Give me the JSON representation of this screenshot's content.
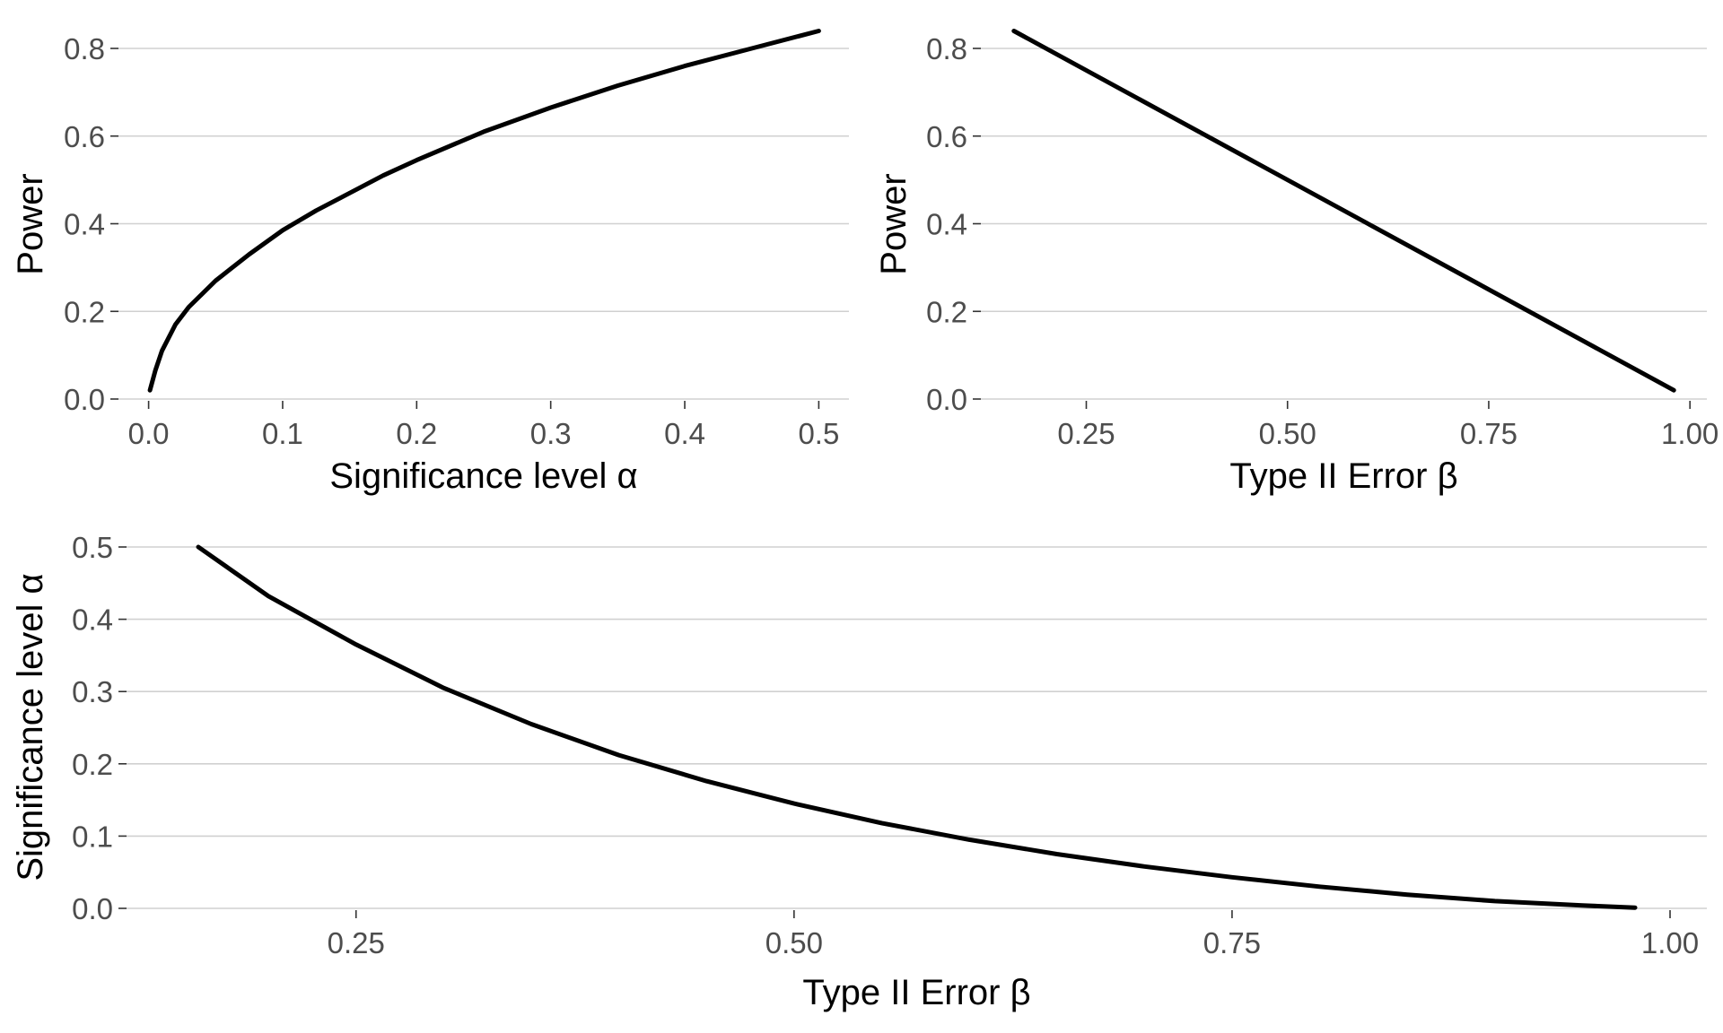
{
  "chart_data": [
    {
      "type": "line",
      "xlabel": "Significance level α",
      "ylabel": "Power",
      "xlim": [
        -0.0225,
        0.5225
      ],
      "ylim": [
        0.0,
        0.8
      ],
      "x_ticks": [
        {
          "value": 0.0,
          "label": "0.0"
        },
        {
          "value": 0.1,
          "label": "0.1"
        },
        {
          "value": 0.2,
          "label": "0.2"
        },
        {
          "value": 0.3,
          "label": "0.3"
        },
        {
          "value": 0.4,
          "label": "0.4"
        },
        {
          "value": 0.5,
          "label": "0.5"
        }
      ],
      "y_ticks": [
        {
          "value": 0.0,
          "label": "0.0"
        },
        {
          "value": 0.2,
          "label": "0.2"
        },
        {
          "value": 0.4,
          "label": "0.4"
        },
        {
          "value": 0.6,
          "label": "0.6"
        },
        {
          "value": 0.8,
          "label": "0.8"
        }
      ],
      "grid": "horizontal",
      "series": [
        {
          "color": "#000000",
          "x": [
            0.001,
            0.005,
            0.01,
            0.02,
            0.03,
            0.05,
            0.075,
            0.1,
            0.125,
            0.15,
            0.175,
            0.2,
            0.25,
            0.3,
            0.35,
            0.4,
            0.45,
            0.5
          ],
          "y": [
            0.02,
            0.065,
            0.11,
            0.17,
            0.21,
            0.27,
            0.33,
            0.385,
            0.43,
            0.47,
            0.51,
            0.545,
            0.61,
            0.665,
            0.715,
            0.76,
            0.8,
            0.84
          ]
        }
      ]
    },
    {
      "type": "line",
      "xlabel": "Type II Error β",
      "ylabel": "Power",
      "xlim": [
        0.119,
        1.021
      ],
      "ylim": [
        0.0,
        0.8
      ],
      "x_ticks": [
        {
          "value": 0.25,
          "label": "0.25"
        },
        {
          "value": 0.5,
          "label": "0.50"
        },
        {
          "value": 0.75,
          "label": "0.75"
        },
        {
          "value": 1.0,
          "label": "1.00"
        }
      ],
      "y_ticks": [
        {
          "value": 0.0,
          "label": "0.0"
        },
        {
          "value": 0.2,
          "label": "0.2"
        },
        {
          "value": 0.4,
          "label": "0.4"
        },
        {
          "value": 0.6,
          "label": "0.6"
        },
        {
          "value": 0.8,
          "label": "0.8"
        }
      ],
      "grid": "horizontal",
      "series": [
        {
          "color": "#000000",
          "x": [
            0.16,
            0.98
          ],
          "y": [
            0.84,
            0.02
          ]
        }
      ]
    },
    {
      "type": "line",
      "xlabel": "Type II Error β",
      "ylabel": "Significance level α",
      "xlim": [
        0.119,
        1.021
      ],
      "ylim": [
        0.0,
        0.5
      ],
      "x_ticks": [
        {
          "value": 0.25,
          "label": "0.25"
        },
        {
          "value": 0.5,
          "label": "0.50"
        },
        {
          "value": 0.75,
          "label": "0.75"
        },
        {
          "value": 1.0,
          "label": "1.00"
        }
      ],
      "y_ticks": [
        {
          "value": 0.0,
          "label": "0.0"
        },
        {
          "value": 0.1,
          "label": "0.1"
        },
        {
          "value": 0.2,
          "label": "0.2"
        },
        {
          "value": 0.3,
          "label": "0.3"
        },
        {
          "value": 0.4,
          "label": "0.4"
        },
        {
          "value": 0.5,
          "label": "0.5"
        }
      ],
      "grid": "horizontal",
      "series": [
        {
          "color": "#000000",
          "x": [
            0.16,
            0.2,
            0.25,
            0.3,
            0.35,
            0.4,
            0.45,
            0.5,
            0.55,
            0.6,
            0.65,
            0.7,
            0.75,
            0.8,
            0.85,
            0.9,
            0.95,
            0.98
          ],
          "y": [
            0.5,
            0.432,
            0.365,
            0.305,
            0.255,
            0.212,
            0.176,
            0.145,
            0.118,
            0.095,
            0.075,
            0.058,
            0.043,
            0.03,
            0.019,
            0.01,
            0.004,
            0.001
          ]
        }
      ]
    }
  ]
}
